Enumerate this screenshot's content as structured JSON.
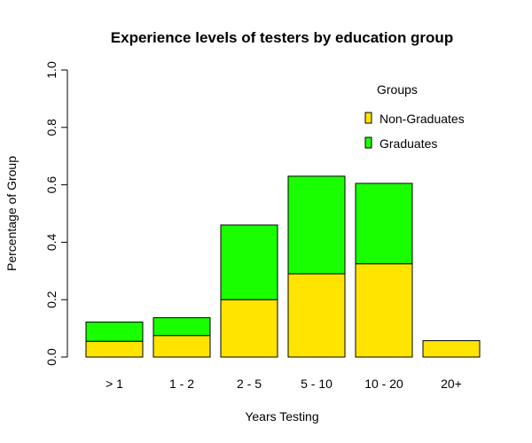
{
  "chart_data": {
    "type": "bar",
    "stacked": true,
    "title": "Experience levels of testers by education group",
    "xlabel": "Years Testing",
    "ylabel": "Percentage of Group",
    "ylim": [
      0,
      1
    ],
    "yticks": [
      "0.0",
      "0.2",
      "0.4",
      "0.6",
      "0.8",
      "1.0"
    ],
    "categories": [
      "> 1",
      "1 - 2",
      "2 - 5",
      "5 - 10",
      "10 - 20",
      "20+"
    ],
    "series": [
      {
        "name": "Non-Graduates",
        "color": "#FFE400",
        "values": [
          0.055,
          0.075,
          0.2,
          0.29,
          0.325,
          0.057
        ]
      },
      {
        "name": "Graduates",
        "color": "#1AFF00",
        "values": [
          0.067,
          0.062,
          0.26,
          0.34,
          0.28,
          0.0
        ]
      }
    ],
    "legend": {
      "title": "Groups",
      "placement": "top-right"
    },
    "grid": false
  }
}
